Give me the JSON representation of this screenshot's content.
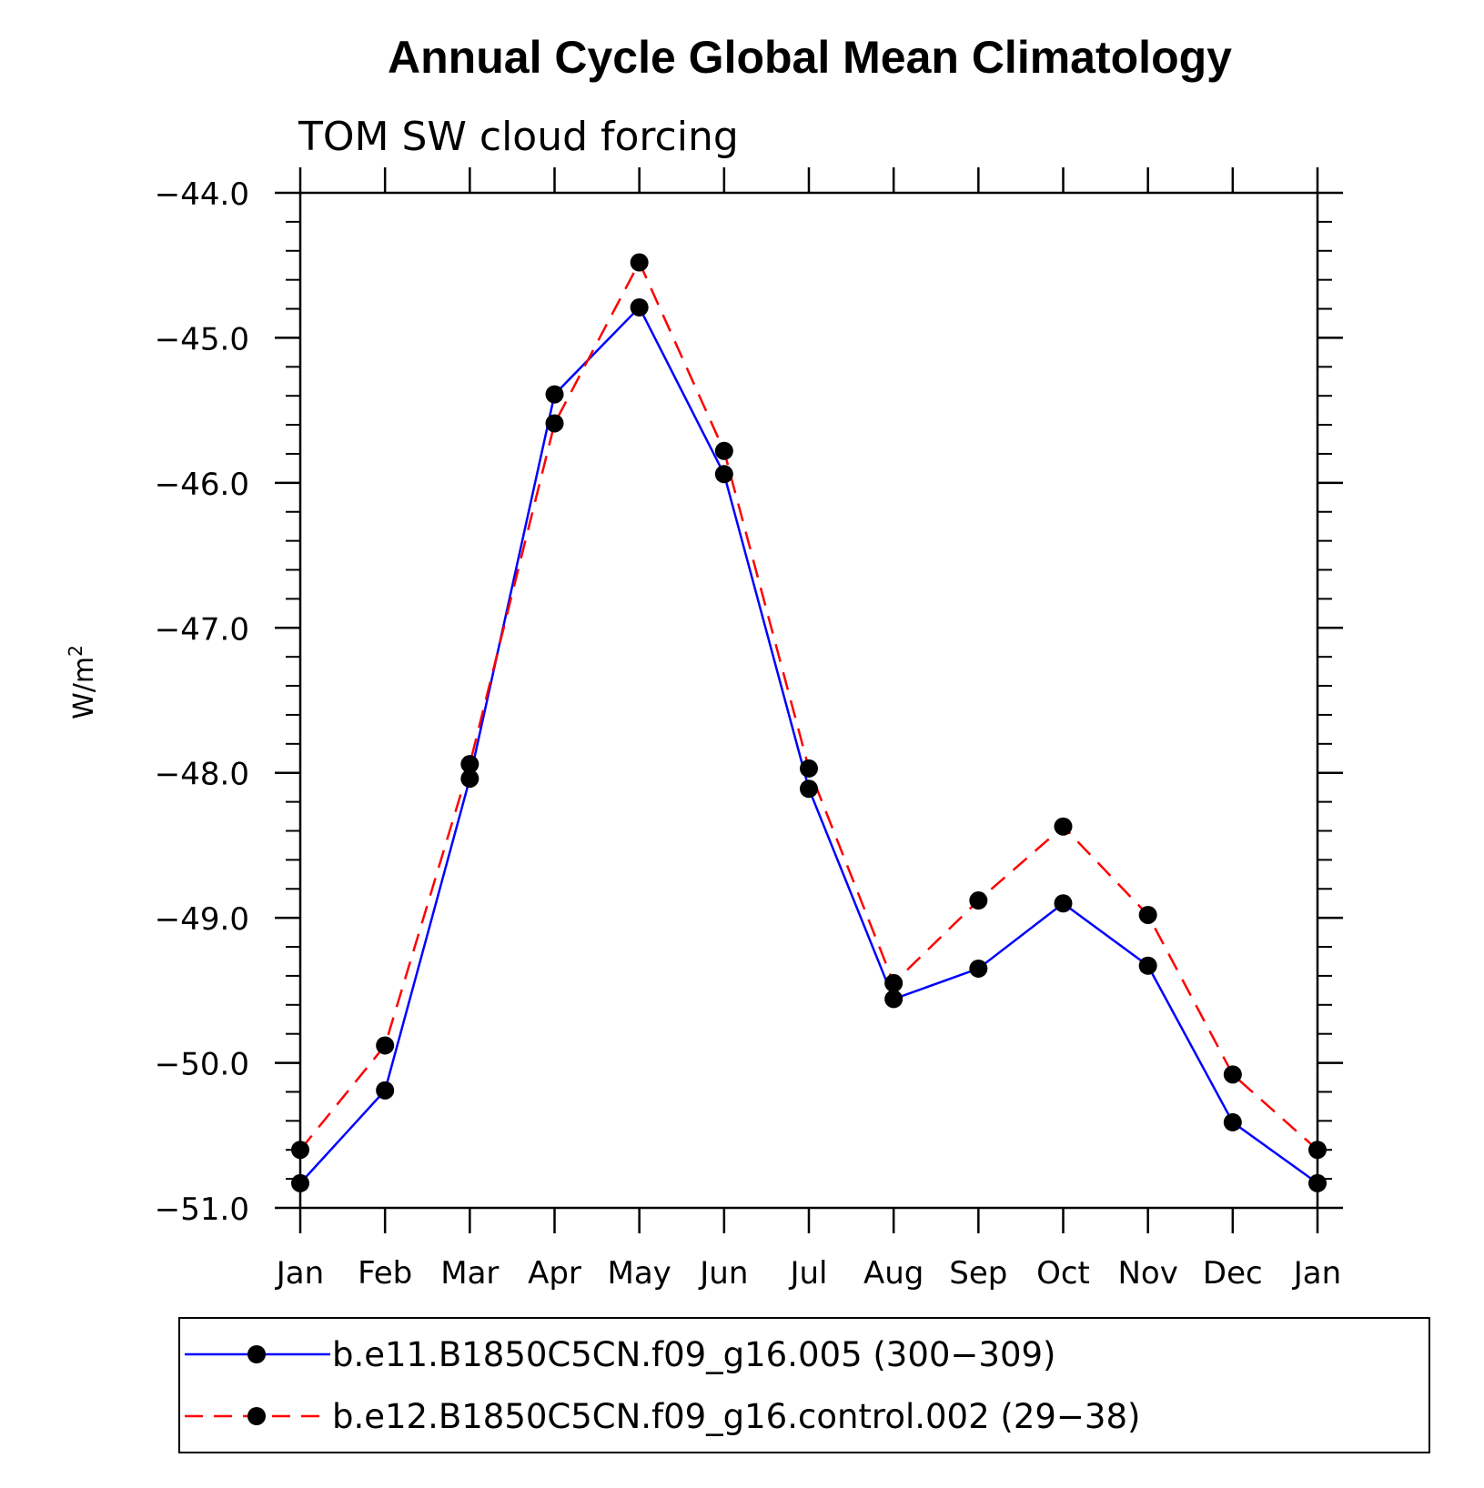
{
  "chart_data": {
    "type": "line",
    "title": "Annual Cycle Global Mean Climatology",
    "subtitle": "TOM SW cloud forcing",
    "ylabel": "W/m",
    "ylabel_superscript": "2",
    "xlabel": "",
    "categories": [
      "Jan",
      "Feb",
      "Mar",
      "Apr",
      "May",
      "Jun",
      "Jul",
      "Aug",
      "Sep",
      "Oct",
      "Nov",
      "Dec",
      "Jan"
    ],
    "ylim": [
      -51.0,
      -44.0
    ],
    "yticks": [
      "-51.0",
      "-50.0",
      "-49.0",
      "-48.0",
      "-47.0",
      "-46.0",
      "-45.0",
      "-44.0"
    ],
    "grid": false,
    "legend_position": "bottom",
    "series": [
      {
        "name": "b.e11.B1850C5CN.f09_g16.005 (300−309)",
        "color": "#0000ff",
        "dash": "solid",
        "marker": "filled-circle",
        "values": [
          -50.83,
          -50.19,
          -48.04,
          -45.39,
          -44.79,
          -45.94,
          -48.11,
          -49.56,
          -49.35,
          -48.9,
          -49.33,
          -50.41,
          -50.83
        ]
      },
      {
        "name": "b.e12.B1850C5CN.f09_g16.control.002 (29−38)",
        "color": "#ff0000",
        "dash": "dashed",
        "marker": "filled-circle",
        "values": [
          -50.6,
          -49.88,
          -47.94,
          -45.59,
          -44.48,
          -45.78,
          -47.97,
          -49.45,
          -48.88,
          -48.37,
          -48.98,
          -50.08,
          -50.6
        ]
      }
    ]
  }
}
